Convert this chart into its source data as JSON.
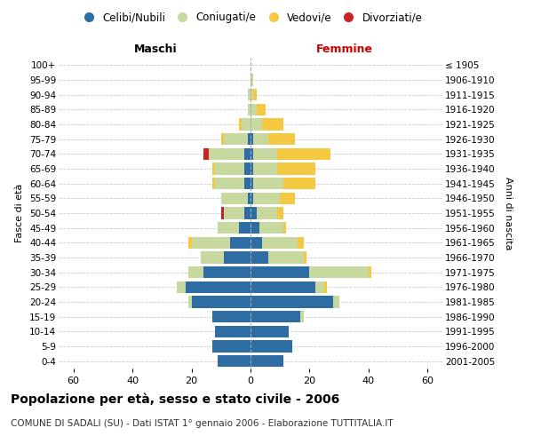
{
  "age_groups": [
    "100+",
    "95-99",
    "90-94",
    "85-89",
    "80-84",
    "75-79",
    "70-74",
    "65-69",
    "60-64",
    "55-59",
    "50-54",
    "45-49",
    "40-44",
    "35-39",
    "30-34",
    "25-29",
    "20-24",
    "15-19",
    "10-14",
    "5-9",
    "0-4"
  ],
  "birth_years": [
    "≤ 1905",
    "1906-1910",
    "1911-1915",
    "1916-1920",
    "1921-1925",
    "1926-1930",
    "1931-1935",
    "1936-1940",
    "1941-1945",
    "1946-1950",
    "1951-1955",
    "1956-1960",
    "1961-1965",
    "1966-1970",
    "1971-1975",
    "1976-1980",
    "1981-1985",
    "1986-1990",
    "1991-1995",
    "1996-2000",
    "2001-2005"
  ],
  "maschi": {
    "celibi": [
      0,
      0,
      0,
      0,
      0,
      1,
      2,
      2,
      2,
      1,
      2,
      4,
      7,
      9,
      16,
      22,
      20,
      13,
      12,
      13,
      11
    ],
    "coniugati": [
      0,
      0,
      1,
      1,
      3,
      8,
      12,
      10,
      10,
      9,
      7,
      7,
      13,
      8,
      5,
      3,
      1,
      0,
      0,
      0,
      0
    ],
    "vedovi": [
      0,
      0,
      0,
      0,
      1,
      1,
      0,
      1,
      1,
      0,
      0,
      0,
      1,
      0,
      0,
      0,
      0,
      0,
      0,
      0,
      0
    ],
    "divorziati": [
      0,
      0,
      0,
      0,
      0,
      0,
      2,
      0,
      0,
      0,
      1,
      0,
      0,
      0,
      0,
      0,
      0,
      0,
      0,
      0,
      0
    ]
  },
  "femmine": {
    "nubili": [
      0,
      0,
      0,
      0,
      0,
      1,
      1,
      1,
      1,
      1,
      2,
      3,
      4,
      6,
      20,
      22,
      28,
      17,
      13,
      14,
      11
    ],
    "coniugate": [
      0,
      1,
      1,
      2,
      4,
      5,
      8,
      8,
      10,
      9,
      7,
      8,
      12,
      12,
      20,
      3,
      2,
      1,
      0,
      0,
      0
    ],
    "vedove": [
      0,
      0,
      1,
      3,
      7,
      9,
      18,
      13,
      11,
      5,
      2,
      1,
      2,
      1,
      1,
      1,
      0,
      0,
      0,
      0,
      0
    ],
    "divorziate": [
      0,
      0,
      0,
      0,
      0,
      0,
      0,
      0,
      0,
      0,
      0,
      0,
      0,
      0,
      0,
      0,
      0,
      0,
      0,
      0,
      0
    ]
  },
  "colors": {
    "celibi_nubili": "#2E6DA4",
    "coniugati": "#C8D9A0",
    "vedovi": "#F5C842",
    "divorziati": "#CC2222"
  },
  "xlim": 65,
  "title": "Popolazione per età, sesso e stato civile - 2006",
  "subtitle": "COMUNE DI SADALI (SU) - Dati ISTAT 1° gennaio 2006 - Elaborazione TUTTITALIA.IT",
  "ylabel_left": "Fasce di età",
  "ylabel_right": "Anni di nascita",
  "xlabel_maschi": "Maschi",
  "xlabel_femmine": "Femmine",
  "background_color": "#ffffff",
  "grid_color": "#cccccc",
  "xticks": [
    -60,
    -40,
    -20,
    0,
    20,
    40,
    60
  ]
}
